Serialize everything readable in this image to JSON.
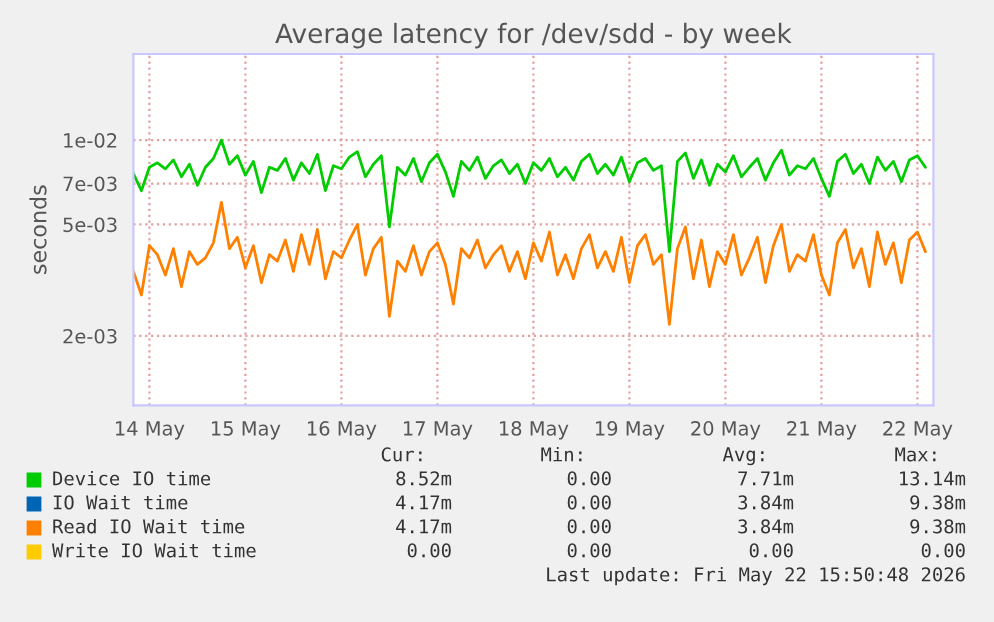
{
  "chart_data": {
    "type": "line",
    "title": "Average latency for /dev/sdd - by week",
    "ylabel": "seconds",
    "x": [
      "2026-05-14T08:00",
      "2026-05-14T10:00",
      "2026-05-14T12:00",
      "2026-05-14T14:00",
      "2026-05-14T16:00",
      "2026-05-14T18:00",
      "2026-05-14T20:00",
      "2026-05-14T22:00",
      "2026-05-15T00:00",
      "2026-05-15T02:00",
      "2026-05-15T04:00",
      "2026-05-15T06:00",
      "2026-05-15T08:00",
      "2026-05-15T10:00",
      "2026-05-15T12:00",
      "2026-05-15T14:00",
      "2026-05-15T16:00",
      "2026-05-15T18:00",
      "2026-05-15T20:00",
      "2026-05-15T22:00",
      "2026-05-16T00:00",
      "2026-05-16T02:00",
      "2026-05-16T04:00",
      "2026-05-16T06:00",
      "2026-05-16T08:00",
      "2026-05-16T10:00",
      "2026-05-16T12:00",
      "2026-05-16T14:00",
      "2026-05-16T16:00",
      "2026-05-16T18:00",
      "2026-05-16T20:00",
      "2026-05-16T22:00",
      "2026-05-17T00:00",
      "2026-05-17T02:00",
      "2026-05-17T04:00",
      "2026-05-17T06:00",
      "2026-05-17T08:00",
      "2026-05-17T10:00",
      "2026-05-17T12:00",
      "2026-05-17T14:00",
      "2026-05-17T16:00",
      "2026-05-17T18:00",
      "2026-05-17T20:00",
      "2026-05-17T22:00",
      "2026-05-18T00:00",
      "2026-05-18T02:00",
      "2026-05-18T04:00",
      "2026-05-18T06:00",
      "2026-05-18T08:00",
      "2026-05-18T10:00",
      "2026-05-18T12:00",
      "2026-05-18T14:00",
      "2026-05-18T16:00",
      "2026-05-18T18:00",
      "2026-05-18T20:00",
      "2026-05-18T22:00",
      "2026-05-19T00:00",
      "2026-05-19T02:00",
      "2026-05-19T04:00",
      "2026-05-19T06:00",
      "2026-05-19T08:00",
      "2026-05-19T10:00",
      "2026-05-19T12:00",
      "2026-05-19T14:00",
      "2026-05-19T16:00",
      "2026-05-19T18:00",
      "2026-05-19T20:00",
      "2026-05-19T22:00",
      "2026-05-20T00:00",
      "2026-05-20T02:00",
      "2026-05-20T04:00",
      "2026-05-20T06:00",
      "2026-05-20T08:00",
      "2026-05-20T10:00",
      "2026-05-20T12:00",
      "2026-05-20T14:00",
      "2026-05-20T16:00",
      "2026-05-20T18:00",
      "2026-05-20T20:00",
      "2026-05-20T22:00",
      "2026-05-21T00:00",
      "2026-05-21T02:00",
      "2026-05-21T04:00",
      "2026-05-21T06:00",
      "2026-05-21T08:00",
      "2026-05-21T10:00",
      "2026-05-21T12:00",
      "2026-05-21T14:00",
      "2026-05-21T16:00",
      "2026-05-21T18:00",
      "2026-05-21T20:00",
      "2026-05-21T22:00",
      "2026-05-22T00:00",
      "2026-05-22T02:00",
      "2026-05-22T04:00",
      "2026-05-22T06:00",
      "2026-05-22T08:00",
      "2026-05-22T10:00",
      "2026-05-22T12:00",
      "2026-05-22T14:00"
    ],
    "series": [
      {
        "name": "Device IO time",
        "color": "#00cc00",
        "values": [
          0.0076,
          0.0066,
          0.008,
          0.0083,
          0.0079,
          0.0085,
          0.0074,
          0.0082,
          0.0069,
          0.008,
          0.0086,
          0.01,
          0.0082,
          0.0088,
          0.0075,
          0.0084,
          0.0065,
          0.008,
          0.0078,
          0.0086,
          0.0072,
          0.0083,
          0.0076,
          0.0089,
          0.0066,
          0.0081,
          0.0079,
          0.0087,
          0.0091,
          0.0074,
          0.0082,
          0.0088,
          0.0049,
          0.008,
          0.0075,
          0.0086,
          0.0071,
          0.0083,
          0.0089,
          0.0077,
          0.0063,
          0.0084,
          0.0078,
          0.0087,
          0.0073,
          0.0081,
          0.0085,
          0.0076,
          0.0082,
          0.007,
          0.0083,
          0.0078,
          0.0086,
          0.0074,
          0.008,
          0.0072,
          0.0084,
          0.0089,
          0.0076,
          0.0082,
          0.0075,
          0.0087,
          0.0071,
          0.0083,
          0.0086,
          0.0078,
          0.0081,
          0.004,
          0.0084,
          0.009,
          0.0073,
          0.0085,
          0.0069,
          0.0082,
          0.0077,
          0.0088,
          0.0074,
          0.008,
          0.0086,
          0.0072,
          0.0083,
          0.0092,
          0.0075,
          0.0081,
          0.0079,
          0.0086,
          0.0073,
          0.0063,
          0.0084,
          0.0089,
          0.0076,
          0.0082,
          0.007,
          0.0087,
          0.0078,
          0.0084,
          0.0071,
          0.0085,
          0.0088,
          0.008
        ]
      },
      {
        "name": "IO Wait time",
        "color": "#0066b3",
        "values": [
          null,
          null,
          null,
          null,
          null,
          null,
          null,
          null,
          null,
          null,
          null,
          null,
          null,
          null,
          null,
          null,
          null,
          null,
          null,
          null,
          null,
          null,
          null,
          null,
          null,
          null,
          null,
          null,
          null,
          null,
          null,
          null,
          null,
          null,
          null,
          null,
          null,
          null,
          null,
          null,
          null,
          null,
          null,
          null,
          null,
          null,
          null,
          null,
          null,
          null,
          null,
          null,
          null,
          null,
          null,
          null,
          null,
          null,
          null,
          null,
          null,
          null,
          null,
          null,
          null,
          null,
          null,
          null,
          null,
          null,
          null,
          null,
          null,
          null,
          null,
          null,
          null,
          null,
          null,
          null,
          null,
          null,
          null,
          null,
          null,
          null,
          null,
          null,
          null,
          null,
          null,
          null,
          null,
          null,
          null,
          null,
          null,
          null,
          null,
          null
        ]
      },
      {
        "name": "Read IO Wait time",
        "color": "#ff8000",
        "values": [
          0.0034,
          0.0028,
          0.0042,
          0.0039,
          0.0033,
          0.0041,
          0.003,
          0.004,
          0.0036,
          0.0038,
          0.0043,
          0.006,
          0.0041,
          0.0045,
          0.0035,
          0.0042,
          0.0031,
          0.0039,
          0.0037,
          0.0044,
          0.0034,
          0.0046,
          0.0036,
          0.0048,
          0.0032,
          0.004,
          0.0038,
          0.0044,
          0.005,
          0.0033,
          0.0041,
          0.0045,
          0.00235,
          0.0037,
          0.0034,
          0.0042,
          0.0033,
          0.004,
          0.0043,
          0.0036,
          0.0026,
          0.0041,
          0.0038,
          0.0044,
          0.0035,
          0.0039,
          0.0042,
          0.0034,
          0.004,
          0.0032,
          0.0043,
          0.0037,
          0.0047,
          0.0033,
          0.0039,
          0.0032,
          0.0041,
          0.0046,
          0.0035,
          0.004,
          0.0034,
          0.0045,
          0.0031,
          0.0042,
          0.0046,
          0.0036,
          0.0039,
          0.0022,
          0.0041,
          0.0049,
          0.0032,
          0.0044,
          0.003,
          0.004,
          0.0036,
          0.0046,
          0.0033,
          0.0038,
          0.0045,
          0.0031,
          0.0042,
          0.005,
          0.0034,
          0.0039,
          0.0037,
          0.0046,
          0.0033,
          0.0028,
          0.0043,
          0.0048,
          0.0035,
          0.0041,
          0.003,
          0.0047,
          0.0036,
          0.0043,
          0.0031,
          0.0044,
          0.0047,
          0.004
        ]
      },
      {
        "name": "Write IO Wait time",
        "color": "#ffcc00",
        "values": [
          null,
          null,
          null,
          null,
          null,
          null,
          null,
          null,
          null,
          null,
          null,
          null,
          null,
          null,
          null,
          null,
          null,
          null,
          null,
          null,
          null,
          null,
          null,
          null,
          null,
          null,
          null,
          null,
          null,
          null,
          null,
          null,
          null,
          null,
          null,
          null,
          null,
          null,
          null,
          null,
          null,
          null,
          null,
          null,
          null,
          null,
          null,
          null,
          null,
          null,
          null,
          null,
          null,
          null,
          null,
          null,
          null,
          null,
          null,
          null,
          null,
          null,
          null,
          null,
          null,
          null,
          null,
          null,
          null,
          null,
          null,
          null,
          null,
          null,
          null,
          null,
          null,
          null,
          null,
          null,
          null,
          null,
          null,
          null,
          null,
          null,
          null,
          null,
          null,
          null,
          null,
          null,
          null,
          null,
          null,
          null,
          null,
          null,
          null,
          null
        ]
      }
    ],
    "xlim": [
      "2026-05-14T08:00",
      "2026-05-22T16:00"
    ],
    "xticks": [
      {
        "value": "2026-05-14T12:00",
        "label": "14 May"
      },
      {
        "value": "2026-05-15T12:00",
        "label": "15 May"
      },
      {
        "value": "2026-05-16T12:00",
        "label": "16 May"
      },
      {
        "value": "2026-05-17T12:00",
        "label": "17 May"
      },
      {
        "value": "2026-05-18T12:00",
        "label": "18 May"
      },
      {
        "value": "2026-05-19T12:00",
        "label": "19 May"
      },
      {
        "value": "2026-05-20T12:00",
        "label": "20 May"
      },
      {
        "value": "2026-05-21T12:00",
        "label": "21 May"
      },
      {
        "value": "2026-05-22T12:00",
        "label": "22 May"
      }
    ],
    "log": "y",
    "ylim": [
      0.00113,
      0.0203
    ],
    "yticks": [
      {
        "value": 0.002,
        "label": "2e-03"
      },
      {
        "value": 0.005,
        "label": "5e-03"
      },
      {
        "value": 0.007,
        "label": "7e-03"
      },
      {
        "value": 0.01,
        "label": "1e-02"
      }
    ],
    "grid": true,
    "legend": "bottom",
    "line_style": "solid",
    "annotations": [
      "Cur:",
      "Min:",
      "Avg:",
      "Max:",
      "8.52m",
      "0.00",
      "7.71m",
      "13.14m",
      "4.17m",
      "0.00",
      "3.84m",
      "9.38m",
      "4.17m",
      "0.00",
      "3.84m",
      "9.38m",
      "0.00",
      "0.00",
      "0.00",
      "0.00",
      "Last update: Fri May 22 15:50:48 2026"
    ]
  }
}
